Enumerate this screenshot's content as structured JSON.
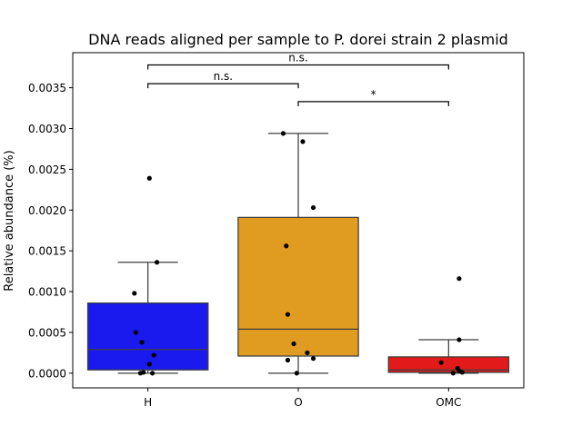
{
  "chart_data": {
    "type": "box",
    "title": "DNA reads aligned per sample to P. dorei strain 2 plasmid",
    "xlabel": "",
    "ylabel": "Relative abundance (%)",
    "ylim": [
      -0.00018,
      0.00393
    ],
    "yticks": [
      0.0,
      0.0005,
      0.001,
      0.0015,
      0.002,
      0.0025,
      0.003,
      0.0035
    ],
    "ytick_labels": [
      "0.0000",
      "0.0005",
      "0.0010",
      "0.0015",
      "0.0020",
      "0.0025",
      "0.0030",
      "0.0035"
    ],
    "categories": [
      "H",
      "O",
      "OMC"
    ],
    "boxes": [
      {
        "category": "H",
        "color": "#1a1aee",
        "whisker_low": 0.0,
        "q1": 4e-05,
        "median": 0.00029,
        "q3": 0.00086,
        "whisker_high": 0.00136
      },
      {
        "category": "O",
        "color": "#e09c20",
        "whisker_low": 0.0,
        "q1": 0.00021,
        "median": 0.00054,
        "q3": 0.00191,
        "whisker_high": 0.00294
      },
      {
        "category": "OMC",
        "color": "#e21a1a",
        "whisker_low": 0.0,
        "q1": 1e-05,
        "median": 4e-05,
        "q3": 0.0002,
        "whisker_high": 0.00041
      }
    ],
    "points": [
      {
        "category": "H",
        "jitter": -0.05,
        "y": 0.0
      },
      {
        "category": "H",
        "jitter": -0.03,
        "y": 1e-05
      },
      {
        "category": "H",
        "jitter": 0.03,
        "y": 0.0
      },
      {
        "category": "H",
        "jitter": 0.01,
        "y": 0.00011
      },
      {
        "category": "H",
        "jitter": 0.04,
        "y": 0.00022
      },
      {
        "category": "H",
        "jitter": -0.04,
        "y": 0.00038
      },
      {
        "category": "H",
        "jitter": -0.08,
        "y": 0.0005
      },
      {
        "category": "H",
        "jitter": -0.09,
        "y": 0.00098
      },
      {
        "category": "H",
        "jitter": 0.06,
        "y": 0.00136
      },
      {
        "category": "H",
        "jitter": 0.01,
        "y": 0.00239
      },
      {
        "category": "O",
        "jitter": -0.01,
        "y": 0.0
      },
      {
        "category": "O",
        "jitter": -0.07,
        "y": 0.00016
      },
      {
        "category": "O",
        "jitter": 0.1,
        "y": 0.00018
      },
      {
        "category": "O",
        "jitter": 0.06,
        "y": 0.00025
      },
      {
        "category": "O",
        "jitter": -0.03,
        "y": 0.00036
      },
      {
        "category": "O",
        "jitter": -0.07,
        "y": 0.00072
      },
      {
        "category": "O",
        "jitter": -0.08,
        "y": 0.00156
      },
      {
        "category": "O",
        "jitter": 0.1,
        "y": 0.00203
      },
      {
        "category": "O",
        "jitter": 0.03,
        "y": 0.00284
      },
      {
        "category": "O",
        "jitter": -0.1,
        "y": 0.00294
      },
      {
        "category": "OMC",
        "jitter": 0.03,
        "y": 0.0
      },
      {
        "category": "OMC",
        "jitter": 0.09,
        "y": 1e-05
      },
      {
        "category": "OMC",
        "jitter": 0.07,
        "y": 3e-05
      },
      {
        "category": "OMC",
        "jitter": 0.06,
        "y": 6e-05
      },
      {
        "category": "OMC",
        "jitter": -0.05,
        "y": 0.00013
      },
      {
        "category": "OMC",
        "jitter": 0.07,
        "y": 0.00041
      },
      {
        "category": "OMC",
        "jitter": 0.07,
        "y": 0.00116
      }
    ],
    "annotations": [
      {
        "from": "H",
        "to": "O",
        "text": "n.s."
      },
      {
        "from": "O",
        "to": "OMC",
        "text": "*"
      },
      {
        "from": "H",
        "to": "OMC",
        "text": "n.s."
      }
    ],
    "grid": false,
    "legend": false
  }
}
